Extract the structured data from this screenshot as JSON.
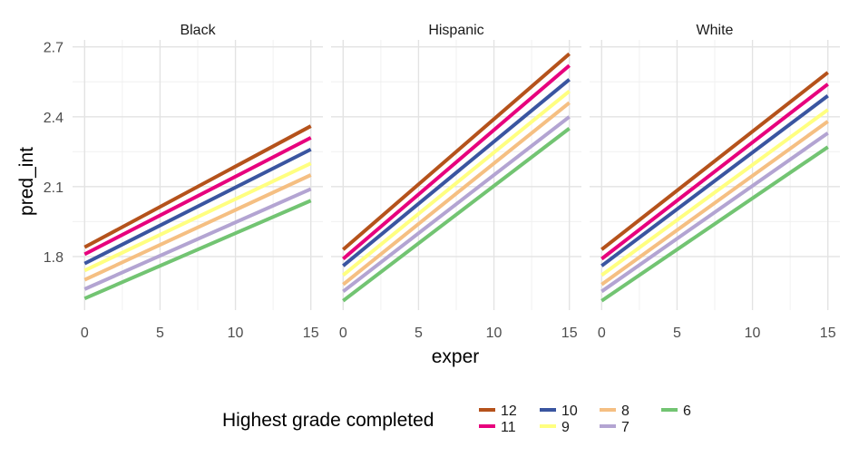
{
  "chart_data": {
    "type": "line",
    "facets": [
      "Black",
      "Hispanic",
      "White"
    ],
    "xlabel": "exper",
    "ylabel": "pred_int",
    "xlim": [
      -0.8,
      15.8
    ],
    "ylim": [
      1.57,
      2.73
    ],
    "x_ticks": [
      0,
      5,
      10,
      15
    ],
    "y_ticks": [
      1.8,
      2.1,
      2.4,
      2.7
    ],
    "y_tick_labels": [
      "1.8",
      "2.1",
      "2.4",
      "2.7"
    ],
    "grid": true,
    "legend": {
      "title": "Highest grade completed",
      "position": "bottom",
      "items": [
        {
          "label": "12",
          "color": "#B5521B"
        },
        {
          "label": "11",
          "color": "#E7007D"
        },
        {
          "label": "10",
          "color": "#3A55A0"
        },
        {
          "label": "9",
          "color": "#FFFF80"
        },
        {
          "label": "8",
          "color": "#F5BF82"
        },
        {
          "label": "7",
          "color": "#B3A4D2"
        },
        {
          "label": "6",
          "color": "#72C472"
        }
      ]
    },
    "series": [
      {
        "facet": "Black",
        "name": "12",
        "x": [
          0,
          15
        ],
        "y": [
          1.84,
          2.36
        ]
      },
      {
        "facet": "Black",
        "name": "11",
        "x": [
          0,
          15
        ],
        "y": [
          1.81,
          2.31
        ]
      },
      {
        "facet": "Black",
        "name": "10",
        "x": [
          0,
          15
        ],
        "y": [
          1.77,
          2.26
        ]
      },
      {
        "facet": "Black",
        "name": "9",
        "x": [
          0,
          15
        ],
        "y": [
          1.74,
          2.2
        ]
      },
      {
        "facet": "Black",
        "name": "8",
        "x": [
          0,
          15
        ],
        "y": [
          1.7,
          2.15
        ]
      },
      {
        "facet": "Black",
        "name": "7",
        "x": [
          0,
          15
        ],
        "y": [
          1.66,
          2.09
        ]
      },
      {
        "facet": "Black",
        "name": "6",
        "x": [
          0,
          15
        ],
        "y": [
          1.62,
          2.04
        ]
      },
      {
        "facet": "Hispanic",
        "name": "12",
        "x": [
          0,
          15
        ],
        "y": [
          1.83,
          2.67
        ]
      },
      {
        "facet": "Hispanic",
        "name": "11",
        "x": [
          0,
          15
        ],
        "y": [
          1.79,
          2.62
        ]
      },
      {
        "facet": "Hispanic",
        "name": "10",
        "x": [
          0,
          15
        ],
        "y": [
          1.76,
          2.56
        ]
      },
      {
        "facet": "Hispanic",
        "name": "9",
        "x": [
          0,
          15
        ],
        "y": [
          1.72,
          2.51
        ]
      },
      {
        "facet": "Hispanic",
        "name": "8",
        "x": [
          0,
          15
        ],
        "y": [
          1.68,
          2.46
        ]
      },
      {
        "facet": "Hispanic",
        "name": "7",
        "x": [
          0,
          15
        ],
        "y": [
          1.65,
          2.4
        ]
      },
      {
        "facet": "Hispanic",
        "name": "6",
        "x": [
          0,
          15
        ],
        "y": [
          1.61,
          2.35
        ]
      },
      {
        "facet": "White",
        "name": "12",
        "x": [
          0,
          15
        ],
        "y": [
          1.83,
          2.59
        ]
      },
      {
        "facet": "White",
        "name": "11",
        "x": [
          0,
          15
        ],
        "y": [
          1.79,
          2.54
        ]
      },
      {
        "facet": "White",
        "name": "10",
        "x": [
          0,
          15
        ],
        "y": [
          1.76,
          2.49
        ]
      },
      {
        "facet": "White",
        "name": "9",
        "x": [
          0,
          15
        ],
        "y": [
          1.72,
          2.43
        ]
      },
      {
        "facet": "White",
        "name": "8",
        "x": [
          0,
          15
        ],
        "y": [
          1.68,
          2.38
        ]
      },
      {
        "facet": "White",
        "name": "7",
        "x": [
          0,
          15
        ],
        "y": [
          1.65,
          2.33
        ]
      },
      {
        "facet": "White",
        "name": "6",
        "x": [
          0,
          15
        ],
        "y": [
          1.61,
          2.27
        ]
      }
    ]
  }
}
